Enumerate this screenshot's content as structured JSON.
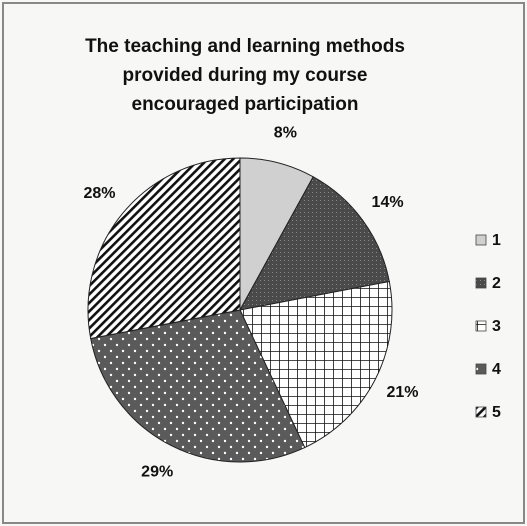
{
  "chart_data": {
    "type": "pie",
    "title": "The teaching and learning methods provided during my course encouraged participation",
    "categories": [
      "1",
      "2",
      "3",
      "4",
      "5"
    ],
    "values": [
      8,
      14,
      21,
      29,
      28
    ],
    "value_labels": [
      "8%",
      "14%",
      "21%",
      "29%",
      "28%"
    ],
    "colors": [
      "#d0d0d0",
      "#4a4a4a",
      "#ffffff",
      "#5a5a5a",
      "#ffffff"
    ],
    "legend": "right"
  }
}
